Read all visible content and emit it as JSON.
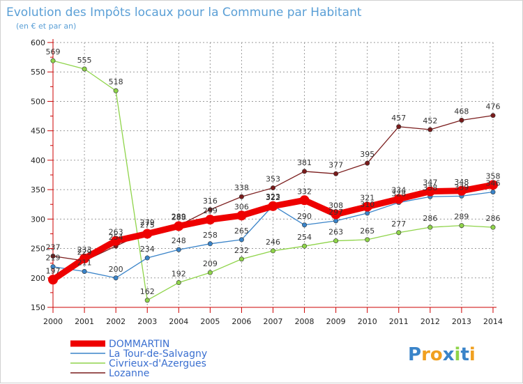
{
  "chart_data": {
    "type": "line",
    "title": "Evolution des Impôts locaux pour la Commune par Habitant",
    "subtitle": "(en € et par an)",
    "x": [
      "2000",
      "2001",
      "2002",
      "2003",
      "2004",
      "2005",
      "2006",
      "2007",
      "2008",
      "2009",
      "2010",
      "2011",
      "2012",
      "2013",
      "2014"
    ],
    "ylim": [
      150,
      600
    ],
    "yticks": [
      "150",
      "200",
      "250",
      "300",
      "350",
      "400",
      "450",
      "500",
      "550",
      "600"
    ],
    "grid": true,
    "legend_position": "bottom-left",
    "series": [
      {
        "name": "Lozanne",
        "color": "#7a1c1c",
        "values": [
          237,
          229,
          254,
          279,
          289,
          316,
          338,
          353,
          381,
          377,
          395,
          457,
          452,
          468,
          476
        ],
        "labels": [
          "237",
          "229",
          "254",
          "279",
          "289",
          "316",
          "338",
          "353",
          "381",
          "377",
          "395",
          "457",
          "452",
          "468",
          "476"
        ]
      },
      {
        "name": "Civrieux-d'Azergues",
        "color": "#8fd44a",
        "values": [
          569,
          555,
          518,
          162,
          192,
          209,
          232,
          246,
          254,
          263,
          265,
          277,
          286,
          289,
          286
        ],
        "labels": [
          "569",
          "555",
          "518",
          "162",
          "192",
          "209",
          "232",
          "246",
          "254",
          "263",
          "265",
          "277",
          "286",
          "289",
          "286"
        ]
      },
      {
        "name": "La Tour-de-Salvagny",
        "color": "#3a84c9",
        "values": [
          219,
          211,
          200,
          234,
          248,
          258,
          265,
          323,
          290,
          297,
          310,
          328,
          338,
          339,
          346
        ],
        "labels": [
          "219",
          "211",
          "200",
          "234",
          "248",
          "258",
          "265",
          "323",
          "290",
          "297",
          "310",
          "328",
          "338",
          "339",
          "346"
        ]
      },
      {
        "name": "DOMMARTIN",
        "color": "#ee0000",
        "values": [
          197,
          233,
          263,
          275,
          288,
          299,
          306,
          322,
          332,
          308,
          321,
          334,
          347,
          348,
          358
        ],
        "labels": [
          "197",
          "233",
          "263",
          "275",
          "288",
          "299",
          "306",
          "322",
          "332",
          "308",
          "321",
          "334",
          "347",
          "348",
          "358"
        ]
      }
    ]
  },
  "logo": {
    "text": "Proxiti"
  }
}
